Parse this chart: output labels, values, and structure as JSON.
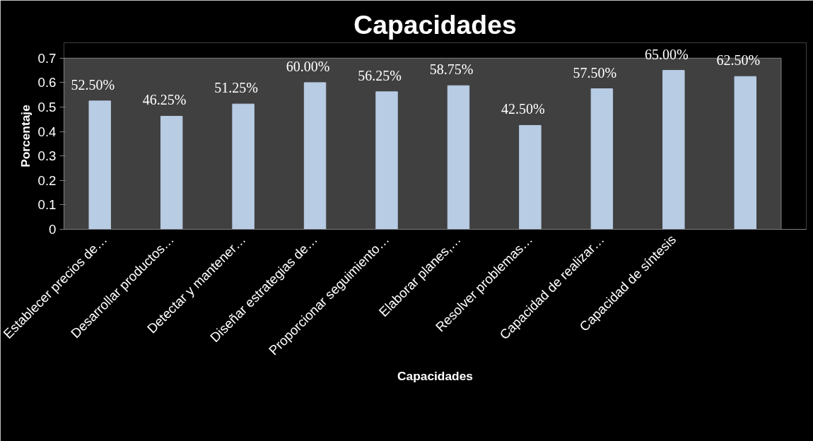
{
  "chart_data": {
    "type": "bar",
    "title": "Capacidades",
    "xlabel": "Capacidades",
    "ylabel": "Porcentaje",
    "categories": [
      "Establecer precios de…",
      "Desarrollar productos…",
      "Detectar y mantener…",
      "Diseñar estrategias de…",
      "Proporcionar seguimiento…",
      "Elaborar planes,…",
      "Resolver problemas…",
      "Capacidad de realizar…",
      "Capacidad de síntesis",
      null
    ],
    "values": [
      0.525,
      0.4625,
      0.5125,
      0.6,
      0.5625,
      0.5875,
      0.425,
      0.575,
      0.65,
      0.625
    ],
    "value_labels": [
      "52.50%",
      "46.25%",
      "51.25%",
      "60.00%",
      "56.25%",
      "58.75%",
      "42.50%",
      "57.50%",
      "65.00%",
      "62.50%"
    ],
    "color": "#b8cce4",
    "ylim": [
      0,
      0.7
    ],
    "yticks": [
      0,
      0.1,
      0.2,
      0.3,
      0.4,
      0.5,
      0.6,
      0.7
    ],
    "grid": false
  }
}
